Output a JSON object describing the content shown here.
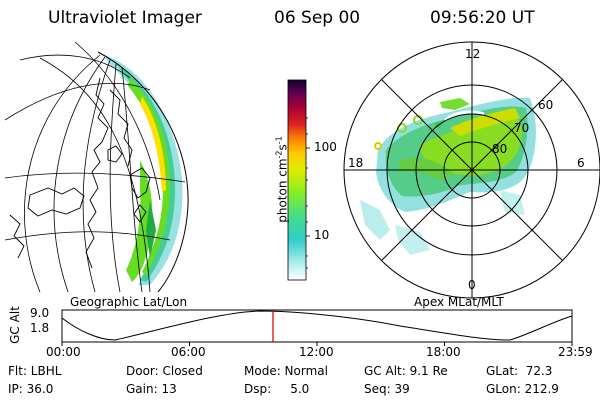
{
  "header": {
    "instrument": "Ultraviolet Imager",
    "date": "06 Sep 00",
    "time": "09:56:20 UT"
  },
  "left_panel": {
    "caption": "Geographic Lat/Lon"
  },
  "right_panel": {
    "caption": "Apex MLat/MLT",
    "mlt_labels": {
      "top": "12",
      "right": "6",
      "bottom": "0",
      "left": "18"
    },
    "lat_labels": [
      "60",
      "70",
      "80"
    ]
  },
  "colorbar": {
    "label": "photon cm-2s-1",
    "label_main": "photon cm",
    "label_exp1": "-2",
    "label_s": "s",
    "label_exp2": "-1",
    "ticks": [
      "100",
      "10"
    ],
    "scale": "log"
  },
  "altitude_plot": {
    "ylabel": "GC Alt",
    "y_ticks": [
      "9.0",
      "1.8"
    ],
    "x_ticks": [
      "00:00",
      "06:00",
      "12:00",
      "18:00",
      "23:59"
    ],
    "marker_time": "09:56",
    "marker_color": "#cc0000"
  },
  "info": {
    "filter": "Flt: LBHL",
    "ip": "IP: 36.0",
    "door": "Door: Closed",
    "gain": "Gain: 13",
    "mode": "Mode: Normal",
    "dsp": "Dsp:     5.0",
    "gc_alt": "GC Alt: 9.1 Re",
    "seq": "Seq: 39",
    "glat": "GLat:  72.3",
    "glon": "GLon: 212.9"
  },
  "colors": {
    "aurora_bright": "#ffe000",
    "aurora_mid": "#66dd00",
    "aurora_low": "#33cc88",
    "aurora_faint": "#88dddd"
  }
}
